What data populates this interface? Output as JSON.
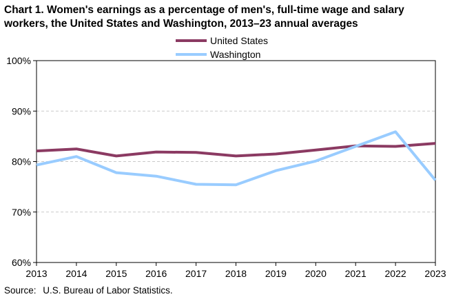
{
  "chart_data": {
    "type": "line",
    "title_lines": [
      "Chart 1. Women's earnings as a percentage of men's, full-time wage and salary",
      "workers, the United States and Washington, 2013–23 annual averages"
    ],
    "x": [
      "2013",
      "2014",
      "2015",
      "2016",
      "2017",
      "2018",
      "2019",
      "2020",
      "2021",
      "2022",
      "2023"
    ],
    "series": [
      {
        "name": "United States",
        "color": "#8b3a62",
        "values": [
          82.1,
          82.5,
          81.1,
          81.9,
          81.8,
          81.1,
          81.5,
          82.3,
          83.1,
          83.0,
          83.6
        ]
      },
      {
        "name": "Washington",
        "color": "#99ccff",
        "values": [
          79.3,
          81.0,
          77.8,
          77.1,
          75.5,
          75.4,
          78.2,
          80.1,
          83.0,
          85.9,
          76.3
        ]
      }
    ],
    "ylim": [
      60,
      100
    ],
    "yticks": [
      60,
      70,
      80,
      90,
      100
    ],
    "ytick_labels": [
      "60%",
      "70%",
      "80%",
      "90%",
      "100%"
    ],
    "xlabel": "",
    "ylabel": "",
    "grid": "horizontal dashed",
    "legend": "top-center"
  },
  "source": {
    "label": "Source:",
    "text": "U.S. Bureau of Labor Statistics."
  }
}
